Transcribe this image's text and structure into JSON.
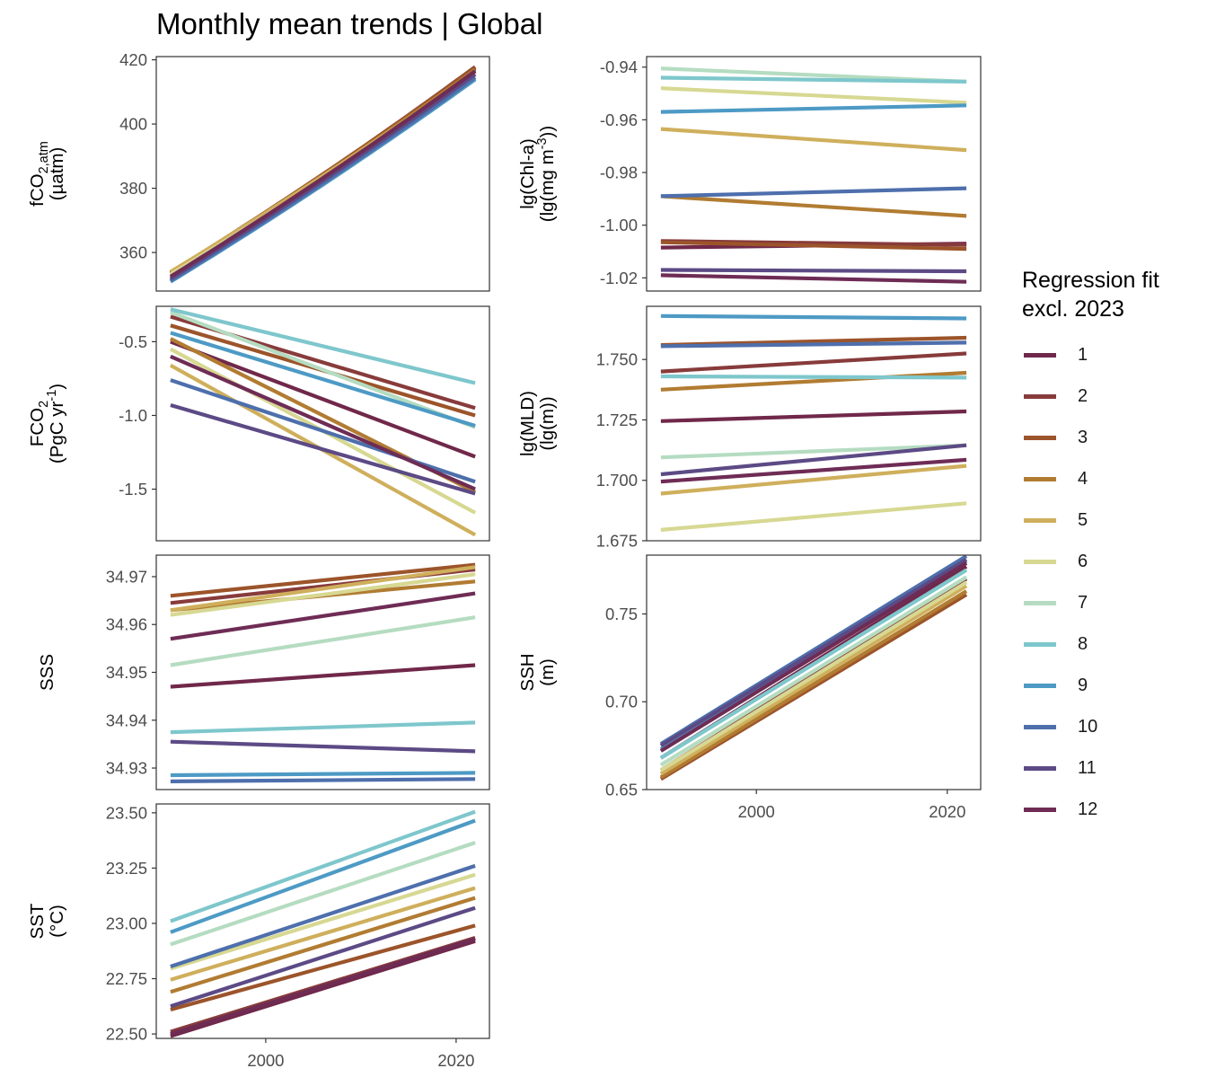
{
  "title": "Monthly mean trends | Global",
  "legend": {
    "title_line1": "Regression fit",
    "title_line2": "excl. 2023",
    "items": [
      {
        "label": "1",
        "color": "#70284a"
      },
      {
        "label": "2",
        "color": "#883b3b"
      },
      {
        "label": "3",
        "color": "#9c542a"
      },
      {
        "label": "4",
        "color": "#b17c32"
      },
      {
        "label": "5",
        "color": "#cfaf5c"
      },
      {
        "label": "6",
        "color": "#d7d892"
      },
      {
        "label": "7",
        "color": "#b5dcc1"
      },
      {
        "label": "8",
        "color": "#7ec7cc"
      },
      {
        "label": "9",
        "color": "#4d9ac5"
      },
      {
        "label": "10",
        "color": "#4e6fac"
      },
      {
        "label": "11",
        "color": "#5c4a85"
      },
      {
        "label": "12",
        "color": "#6e2c55"
      }
    ]
  },
  "chart_data": [
    {
      "type": "line",
      "ylabel": "fCO2,atm (µatm)",
      "ylabel_lines": [
        [
          [
            "fCO",
            ""
          ],
          [
            "2,atm",
            "sub"
          ]
        ],
        [
          [
            "(µatm)",
            ""
          ]
        ]
      ],
      "x": [
        1990,
        2022
      ],
      "xlim": [
        1988.5,
        2023.5
      ],
      "ylim": [
        348,
        421
      ],
      "yticks": [
        360,
        380,
        400,
        420
      ],
      "ytick_labels": [
        "360",
        "380",
        "400",
        "420"
      ],
      "xticks": [],
      "series": [
        {
          "month": 1,
          "values": [
            353.2,
            417.2
          ]
        },
        {
          "month": 2,
          "values": [
            353.5,
            417.8
          ]
        },
        {
          "month": 3,
          "values": [
            353.8,
            417.6
          ]
        },
        {
          "month": 4,
          "values": [
            353.8,
            416.9
          ]
        },
        {
          "month": 5,
          "values": [
            354.0,
            416.2
          ]
        },
        {
          "month": 6,
          "values": [
            353.2,
            415.2
          ]
        },
        {
          "month": 7,
          "values": [
            352.2,
            414.5
          ]
        },
        {
          "month": 8,
          "values": [
            351.4,
            414.0
          ]
        },
        {
          "month": 9,
          "values": [
            350.9,
            413.9
          ]
        },
        {
          "month": 10,
          "values": [
            351.2,
            414.5
          ]
        },
        {
          "month": 11,
          "values": [
            351.8,
            415.5
          ]
        },
        {
          "month": 12,
          "values": [
            352.5,
            416.5
          ]
        }
      ],
      "curved": true
    },
    {
      "type": "line",
      "ylabel": "lg(Chl-a) (lg(mg m-3))",
      "ylabel_lines": [
        [
          [
            "lg(Chl-a)",
            ""
          ]
        ],
        [
          [
            "(lg(mg m",
            ""
          ],
          [
            "-3",
            "sup"
          ],
          [
            "))",
            ""
          ]
        ]
      ],
      "x": [
        1990,
        2022
      ],
      "xlim": [
        1988.5,
        2023.5
      ],
      "ylim": [
        -1.025,
        -0.936
      ],
      "yticks": [
        -1.02,
        -1.0,
        -0.98,
        -0.96,
        -0.94
      ],
      "ytick_labels": [
        "-1.02",
        "-1.00",
        "-0.98",
        "-0.96",
        "-0.94"
      ],
      "xticks": [],
      "series": [
        {
          "month": 1,
          "values": [
            -1.0085,
            -1.007
          ]
        },
        {
          "month": 2,
          "values": [
            -1.006,
            -1.0075
          ]
        },
        {
          "month": 3,
          "values": [
            -1.0065,
            -1.009
          ]
        },
        {
          "month": 4,
          "values": [
            -0.989,
            -0.9965
          ]
        },
        {
          "month": 5,
          "values": [
            -0.9635,
            -0.9715
          ]
        },
        {
          "month": 6,
          "values": [
            -0.948,
            -0.9535
          ]
        },
        {
          "month": 7,
          "values": [
            -0.9405,
            -0.9455
          ]
        },
        {
          "month": 8,
          "values": [
            -0.944,
            -0.9455
          ]
        },
        {
          "month": 9,
          "values": [
            -0.957,
            -0.9545
          ]
        },
        {
          "month": 10,
          "values": [
            -0.989,
            -0.986
          ]
        },
        {
          "month": 11,
          "values": [
            -1.017,
            -1.0175
          ]
        },
        {
          "month": 12,
          "values": [
            -1.019,
            -1.0215
          ]
        }
      ]
    },
    {
      "type": "line",
      "ylabel": "FCO2 (PgC yr-1)",
      "ylabel_lines": [
        [
          [
            "FCO",
            ""
          ],
          [
            "2",
            "sub"
          ]
        ],
        [
          [
            "(PgC yr",
            ""
          ],
          [
            "-1",
            "sup"
          ],
          [
            ")",
            ""
          ]
        ]
      ],
      "x": [
        1990,
        2022
      ],
      "xlim": [
        1988.5,
        2023.5
      ],
      "ylim": [
        -1.85,
        -0.26
      ],
      "yticks": [
        -1.5,
        -1.0,
        -0.5
      ],
      "ytick_labels": [
        "-1.5",
        "-1.0",
        "-0.5"
      ],
      "xticks": [],
      "series": [
        {
          "month": 1,
          "values": [
            -0.5,
            -1.28
          ]
        },
        {
          "month": 2,
          "values": [
            -0.33,
            -0.95
          ]
        },
        {
          "month": 3,
          "values": [
            -0.39,
            -1.0
          ]
        },
        {
          "month": 4,
          "values": [
            -0.48,
            -1.52
          ]
        },
        {
          "month": 5,
          "values": [
            -0.66,
            -1.81
          ]
        },
        {
          "month": 6,
          "values": [
            -0.55,
            -1.66
          ]
        },
        {
          "month": 7,
          "values": [
            -0.3,
            -1.08
          ]
        },
        {
          "month": 8,
          "values": [
            -0.28,
            -0.78
          ]
        },
        {
          "month": 9,
          "values": [
            -0.44,
            -1.07
          ]
        },
        {
          "month": 10,
          "values": [
            -0.76,
            -1.45
          ]
        },
        {
          "month": 11,
          "values": [
            -0.93,
            -1.53
          ]
        },
        {
          "month": 12,
          "values": [
            -0.6,
            -1.5
          ]
        }
      ]
    },
    {
      "type": "line",
      "ylabel": "lg(MLD) (lg(m))",
      "ylabel_lines": [
        [
          [
            "lg(MLD)",
            ""
          ]
        ],
        [
          [
            "(lg(m))",
            ""
          ]
        ]
      ],
      "x": [
        1990,
        2022
      ],
      "xlim": [
        1988.5,
        2023.5
      ],
      "ylim": [
        1.675,
        1.772
      ],
      "yticks": [
        1.675,
        1.7,
        1.725,
        1.75
      ],
      "ytick_labels": [
        "1.675",
        "1.700",
        "1.725",
        "1.750"
      ],
      "xticks": [],
      "series": [
        {
          "month": 1,
          "values": [
            1.7245,
            1.7285
          ]
        },
        {
          "month": 2,
          "values": [
            1.745,
            1.7525
          ]
        },
        {
          "month": 3,
          "values": [
            1.756,
            1.759
          ]
        },
        {
          "month": 4,
          "values": [
            1.7375,
            1.7445
          ]
        },
        {
          "month": 5,
          "values": [
            1.6945,
            1.706
          ]
        },
        {
          "month": 6,
          "values": [
            1.6795,
            1.6905
          ]
        },
        {
          "month": 7,
          "values": [
            1.7095,
            1.7145
          ]
        },
        {
          "month": 8,
          "values": [
            1.743,
            1.7425
          ]
        },
        {
          "month": 9,
          "values": [
            1.768,
            1.767
          ]
        },
        {
          "month": 10,
          "values": [
            1.7555,
            1.757
          ]
        },
        {
          "month": 11,
          "values": [
            1.7025,
            1.7145
          ]
        },
        {
          "month": 12,
          "values": [
            1.6995,
            1.7085
          ]
        }
      ]
    },
    {
      "type": "line",
      "ylabel": "SSS",
      "ylabel_lines": [
        [
          [
            "SSS",
            ""
          ]
        ]
      ],
      "x": [
        1990,
        2022
      ],
      "xlim": [
        1988.5,
        2023.5
      ],
      "ylim": [
        34.9255,
        34.9745
      ],
      "yticks": [
        34.93,
        34.94,
        34.95,
        34.96,
        34.97
      ],
      "ytick_labels": [
        "34.93",
        "34.94",
        "34.95",
        "34.96",
        "34.97"
      ],
      "xticks": [],
      "series": [
        {
          "month": 1,
          "values": [
            34.947,
            34.9515
          ]
        },
        {
          "month": 2,
          "values": [
            34.9645,
            34.9715
          ]
        },
        {
          "month": 3,
          "values": [
            34.966,
            34.9725
          ]
        },
        {
          "month": 4,
          "values": [
            34.963,
            34.969
          ]
        },
        {
          "month": 5,
          "values": [
            34.963,
            34.972
          ]
        },
        {
          "month": 6,
          "values": [
            34.962,
            34.9705
          ]
        },
        {
          "month": 7,
          "values": [
            34.9515,
            34.9615
          ]
        },
        {
          "month": 8,
          "values": [
            34.9375,
            34.9395
          ]
        },
        {
          "month": 9,
          "values": [
            34.9285,
            34.929
          ]
        },
        {
          "month": 10,
          "values": [
            34.9272,
            34.9277
          ]
        },
        {
          "month": 11,
          "values": [
            34.9355,
            34.9335
          ]
        },
        {
          "month": 12,
          "values": [
            34.957,
            34.9665
          ]
        }
      ]
    },
    {
      "type": "line",
      "ylabel": "SSH (m)",
      "ylabel_lines": [
        [
          [
            "SSH",
            ""
          ]
        ],
        [
          [
            "(m)",
            ""
          ]
        ]
      ],
      "x": [
        1990,
        2022
      ],
      "xlim": [
        1988.5,
        2023.5
      ],
      "ylim": [
        0.65,
        0.7835
      ],
      "yticks": [
        0.65,
        0.7,
        0.75
      ],
      "ytick_labels": [
        "0.65",
        "0.70",
        "0.75"
      ],
      "xticks": [
        2000,
        2020
      ],
      "xtick_labels": [
        "2000",
        "2020"
      ],
      "series": [
        {
          "month": 1,
          "values": [
            0.668,
            0.777
          ]
        },
        {
          "month": 2,
          "values": [
            0.661,
            0.77
          ]
        },
        {
          "month": 3,
          "values": [
            0.656,
            0.761
          ]
        },
        {
          "month": 4,
          "values": [
            0.657,
            0.763
          ]
        },
        {
          "month": 5,
          "values": [
            0.659,
            0.766
          ]
        },
        {
          "month": 6,
          "values": [
            0.661,
            0.768
          ]
        },
        {
          "month": 7,
          "values": [
            0.664,
            0.771
          ]
        },
        {
          "month": 8,
          "values": [
            0.668,
            0.775
          ]
        },
        {
          "month": 9,
          "values": [
            0.673,
            0.78
          ]
        },
        {
          "month": 10,
          "values": [
            0.676,
            0.783
          ]
        },
        {
          "month": 11,
          "values": [
            0.675,
            0.781
          ]
        },
        {
          "month": 12,
          "values": [
            0.672,
            0.779
          ]
        }
      ]
    },
    {
      "type": "line",
      "ylabel": "SST (°C)",
      "ylabel_lines": [
        [
          [
            "SST",
            ""
          ]
        ],
        [
          [
            "(°C)",
            ""
          ]
        ]
      ],
      "x": [
        1990,
        2022
      ],
      "xlim": [
        1988.5,
        2023.5
      ],
      "ylim": [
        22.48,
        23.54
      ],
      "yticks": [
        22.5,
        22.75,
        23.0,
        23.25,
        23.5
      ],
      "ytick_labels": [
        "22.50",
        "22.75",
        "23.00",
        "23.25",
        "23.50"
      ],
      "xticks": [
        2000,
        2020
      ],
      "xtick_labels": [
        "2000",
        "2020"
      ],
      "series": [
        {
          "month": 1,
          "values": [
            22.49,
            22.92
          ]
        },
        {
          "month": 2,
          "values": [
            22.51,
            22.935
          ]
        },
        {
          "month": 3,
          "values": [
            22.61,
            22.99
          ]
        },
        {
          "month": 4,
          "values": [
            22.69,
            23.115
          ]
        },
        {
          "month": 5,
          "values": [
            22.745,
            23.16
          ]
        },
        {
          "month": 6,
          "values": [
            22.795,
            23.22
          ]
        },
        {
          "month": 7,
          "values": [
            22.905,
            23.365
          ]
        },
        {
          "month": 8,
          "values": [
            23.01,
            23.505
          ]
        },
        {
          "month": 9,
          "values": [
            22.96,
            23.465
          ]
        },
        {
          "month": 10,
          "values": [
            22.805,
            23.26
          ]
        },
        {
          "month": 11,
          "values": [
            22.625,
            23.07
          ]
        },
        {
          "month": 12,
          "values": [
            22.5,
            22.93
          ]
        }
      ]
    }
  ]
}
